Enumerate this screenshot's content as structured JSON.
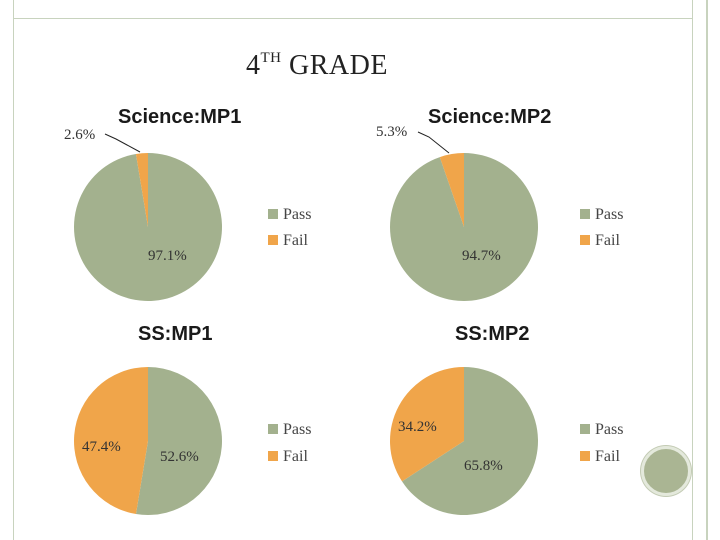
{
  "slide": {
    "title_main": "4",
    "title_sup": "TH",
    "title_rest": " GRADE"
  },
  "colors": {
    "pass": "#a3b18e",
    "fail": "#f0a54a"
  },
  "chart_data": [
    {
      "type": "pie",
      "title": "Science:MP1",
      "legend": [
        "Pass",
        "Fail"
      ],
      "slices": [
        {
          "name": "Pass",
          "value": 97.1,
          "label": "97.1%"
        },
        {
          "name": "Fail",
          "value": 2.6,
          "label": "2.6%"
        }
      ]
    },
    {
      "type": "pie",
      "title": "Science:MP2",
      "legend": [
        "Pass",
        "Fail"
      ],
      "slices": [
        {
          "name": "Pass",
          "value": 94.7,
          "label": "94.7%"
        },
        {
          "name": "Fail",
          "value": 5.3,
          "label": "5.3%"
        }
      ]
    },
    {
      "type": "pie",
      "title": "SS:MP1",
      "legend": [
        "Pass",
        "Fail"
      ],
      "slices": [
        {
          "name": "Pass",
          "value": 52.6,
          "label": "52.6%"
        },
        {
          "name": "Fail",
          "value": 47.4,
          "label": "47.4%"
        }
      ]
    },
    {
      "type": "pie",
      "title": "SS:MP2",
      "legend": [
        "Pass",
        "Fail"
      ],
      "slices": [
        {
          "name": "Pass",
          "value": 65.8,
          "label": "65.8%"
        },
        {
          "name": "Fail",
          "value": 34.2,
          "label": "34.2%"
        }
      ]
    }
  ]
}
